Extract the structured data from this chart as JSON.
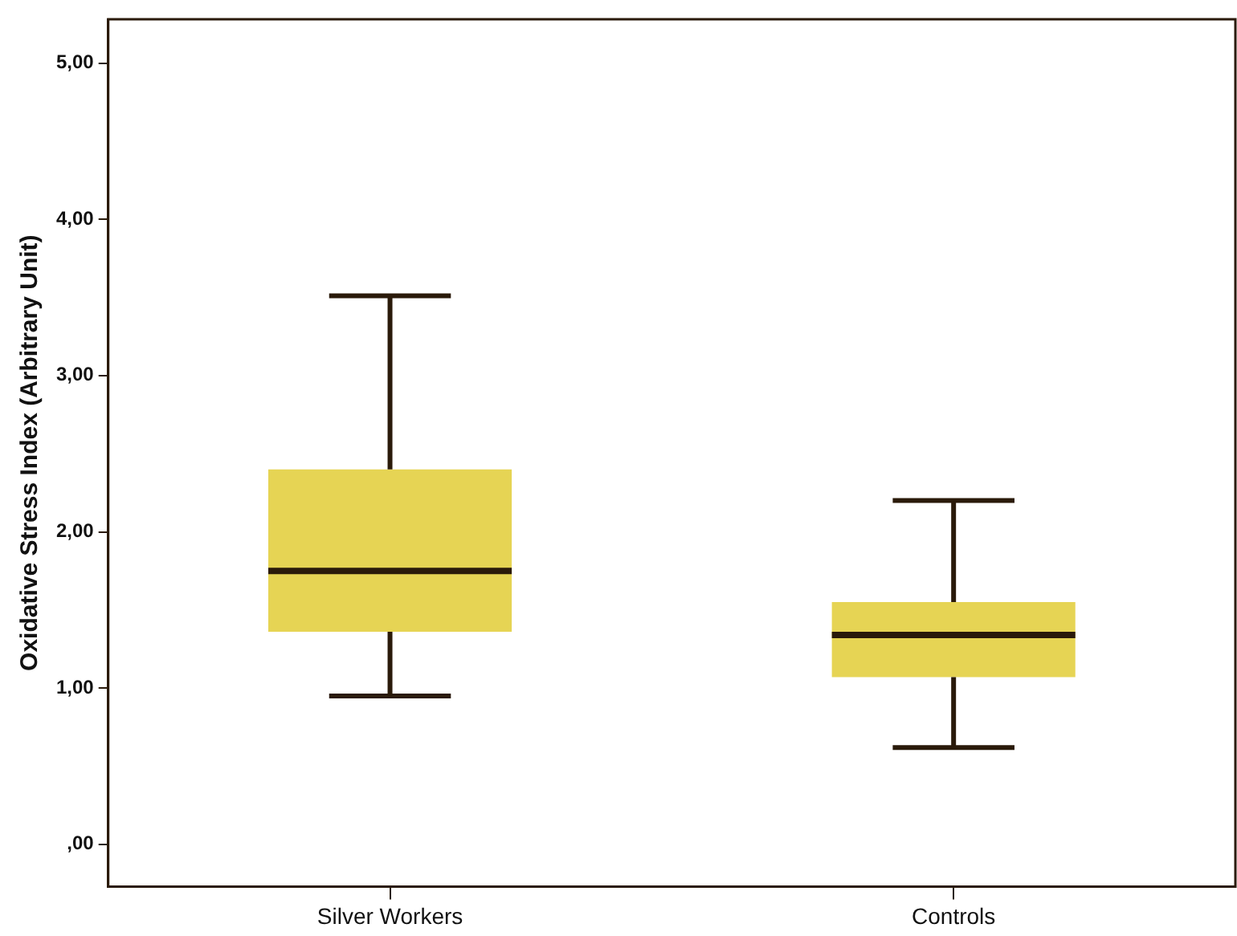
{
  "chart_data": {
    "type": "box",
    "ylabel": "Oxidative Stress Index (Arbitrary Unit)",
    "categories": [
      "Silver Workers",
      "Controls"
    ],
    "color": "#e6d454",
    "boxes": [
      {
        "low": 0.95,
        "q1": 1.36,
        "median": 1.75,
        "q3": 2.4,
        "high": 3.51
      },
      {
        "low": 0.62,
        "q1": 1.07,
        "median": 1.34,
        "q3": 1.55,
        "high": 2.2
      }
    ],
    "ylim": [
      -0.27,
      5.28
    ],
    "yticks": [
      {
        "value": 0,
        "label": ",00"
      },
      {
        "value": 1,
        "label": "1,00"
      },
      {
        "value": 2,
        "label": "2,00"
      },
      {
        "value": 3,
        "label": "3,00"
      },
      {
        "value": 4,
        "label": "4,00"
      },
      {
        "value": 5,
        "label": "5,00"
      }
    ],
    "grid": false
  }
}
